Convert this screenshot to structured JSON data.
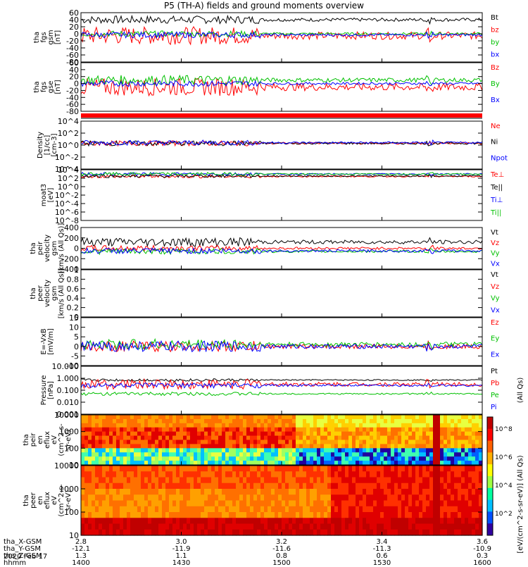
{
  "title": "P5 (TH-A) fields and ground moments overview",
  "chart_data": {
    "type": "line",
    "panels": [
      {
        "id": "fgs_gsm",
        "ylabel": [
          "tha",
          "fgs",
          "gsm",
          "[nT]"
        ],
        "yticks": [
          60,
          40,
          20,
          0,
          -20,
          -40,
          -60,
          -80
        ],
        "ylim": [
          -80,
          60
        ],
        "series": [
          {
            "name": "Bt",
            "color": "#000000",
            "base": 40,
            "amp": 8
          },
          {
            "name": "bz",
            "color": "#ff0000",
            "base": -5,
            "amp": 18
          },
          {
            "name": "by",
            "color": "#00c000",
            "base": 0,
            "amp": 6
          },
          {
            "name": "bx",
            "color": "#0000ff",
            "base": -3,
            "amp": 6
          }
        ],
        "legend": [
          "Bt",
          "bz",
          "by",
          "bx"
        ]
      },
      {
        "id": "fgs_gse",
        "ylabel": [
          "tha",
          "fgs",
          "gse",
          "[nT]"
        ],
        "yticks": [
          60,
          40,
          20,
          0,
          -20,
          -40,
          -60,
          -80
        ],
        "ylim": [
          -80,
          60
        ],
        "series": [
          {
            "name": "Bz",
            "color": "#ff0000",
            "base": -10,
            "amp": 18
          },
          {
            "name": "By",
            "color": "#00c000",
            "base": 10,
            "amp": 10
          },
          {
            "name": "Bx",
            "color": "#0000ff",
            "base": 0,
            "amp": 6
          }
        ],
        "legend": [
          "Bz",
          "By",
          "Bx"
        ]
      },
      {
        "id": "density",
        "ylabel": [
          "Density",
          "[1/cc]",
          "[cm-3]"
        ],
        "yticks": [
          "10^4",
          "10^2",
          "10^0",
          "10^-2",
          "10^-4"
        ],
        "log": true,
        "ylim": [
          -4,
          4
        ],
        "series": [
          {
            "name": "Ne",
            "color": "#ff0000",
            "base": 0.3,
            "amp": 0.3
          },
          {
            "name": "Ni",
            "color": "#000000",
            "base": 0.3,
            "amp": 0.3
          },
          {
            "name": "Npot",
            "color": "#0000ff",
            "base": 0.4,
            "amp": 0.3
          }
        ],
        "legend": [
          "Ne",
          "Ni",
          "Npot"
        ]
      },
      {
        "id": "temperature",
        "ylabel": [
          "moat3",
          "[eV]"
        ],
        "yticks": [
          "10^4",
          "10^2",
          "10^0",
          "10^-2",
          "10^-4",
          "10^-6",
          "10^-8"
        ],
        "log": true,
        "ylim": [
          -9,
          4
        ],
        "series": [
          {
            "name": "Te⊥",
            "color": "#ff0000",
            "base": 2.3,
            "amp": 0.3
          },
          {
            "name": "Te||",
            "color": "#000000",
            "base": 2.4,
            "amp": 0.3
          },
          {
            "name": "Ti⊥",
            "color": "#0000ff",
            "base": 2.9,
            "amp": 0.3
          },
          {
            "name": "Ti||",
            "color": "#00c000",
            "base": 2.9,
            "amp": 0.3
          }
        ],
        "legend": [
          "Te⊥",
          "Te||",
          "Ti⊥",
          "Ti||"
        ]
      },
      {
        "id": "peir_velocity",
        "ylabel": [
          "tha",
          "peir",
          "velocity",
          "gsm",
          "[km/s (All Qs)]"
        ],
        "yticks": [
          400,
          200,
          0,
          -200,
          -400
        ],
        "ylim": [
          -400,
          400
        ],
        "series": [
          {
            "name": "Vt",
            "color": "#000000",
            "base": 120,
            "amp": 60
          },
          {
            "name": "Vz",
            "color": "#ff0000",
            "base": 0,
            "amp": 40
          },
          {
            "name": "Vy",
            "color": "#00c000",
            "base": -60,
            "amp": 40
          },
          {
            "name": "Vx",
            "color": "#0000ff",
            "base": -50,
            "amp": 40
          }
        ],
        "legend": [
          "Vt",
          "Vz",
          "Vy",
          "Vx"
        ]
      },
      {
        "id": "peer_velocity",
        "ylabel": [
          "tha",
          "peer",
          "velocity",
          "gsm",
          "[km/s (All Qs)]"
        ],
        "yticks": [
          1.0,
          0.8,
          0.6,
          0.4,
          0.2,
          0.0
        ],
        "ylim": [
          0,
          1
        ],
        "series": [],
        "legend": [
          "Vt",
          "Vz",
          "Vy",
          "Vx"
        ]
      },
      {
        "id": "efield",
        "ylabel": [
          "E=-VxB",
          "[mV/m]"
        ],
        "yticks": [
          15,
          10,
          5,
          0,
          -5,
          -10
        ],
        "ylim": [
          -10,
          15
        ],
        "series": [
          {
            "name": "Ez",
            "color": "#ff0000",
            "base": 0,
            "amp": 2
          },
          {
            "name": "Ey",
            "color": "#00c000",
            "base": 1,
            "amp": 2
          },
          {
            "name": "Ex",
            "color": "#0000ff",
            "base": 0,
            "amp": 2
          }
        ],
        "legend": [
          "Ez",
          "Ey",
          "Ex"
        ]
      },
      {
        "id": "pressure",
        "ylabel": [
          "Pressure",
          "[nPa]"
        ],
        "yticks": [
          "10.000",
          "1.000",
          "0.100",
          "0.010",
          "0.001"
        ],
        "log": true,
        "ylim": [
          -3,
          1
        ],
        "series": [
          {
            "name": "Pt",
            "color": "#000000",
            "base": -0.15,
            "amp": 0.08
          },
          {
            "name": "Pb",
            "color": "#ff0000",
            "base": -0.5,
            "amp": 0.3
          },
          {
            "name": "Pe",
            "color": "#00c000",
            "base": -1.3,
            "amp": 0.1
          },
          {
            "name": "Pi",
            "color": "#0000ff",
            "base": -0.6,
            "amp": 0.15
          }
        ],
        "legend": [
          "Pt",
          "Pb",
          "Pe",
          "Pi"
        ],
        "right_label": "(All Qs)"
      },
      {
        "id": "peir_eflux",
        "ylabel": [
          "tha",
          "peir",
          "en",
          "eflux",
          "eV",
          "(cm^2-s-",
          "sr-eV)"
        ],
        "yticks": [
          10000,
          1000,
          100,
          10
        ],
        "log": true,
        "spectrogram": true
      },
      {
        "id": "peer_eflux",
        "ylabel": [
          "tha",
          "peer",
          "en",
          "eflux",
          "eV",
          "(cm^2-s-",
          "sr-eV)"
        ],
        "yticks": [
          10000,
          1000,
          100,
          10
        ],
        "log": true,
        "spectrogram": true
      }
    ],
    "colorbar": {
      "label": "[eV/(cm^2-s-sr-eV)] (All Qs)",
      "ticks": [
        "10^8",
        "10^6",
        "10^4",
        "10^2"
      ]
    },
    "x_time_ticks": [
      "1400",
      "1430",
      "1500",
      "1530",
      "1600"
    ],
    "ephemeris": [
      {
        "label": "tha_X-GSM",
        "values": [
          "2.8",
          "3.0",
          "3.2",
          "3.4",
          "3.6"
        ]
      },
      {
        "label": "tha_Y-GSM",
        "values": [
          "-12.1",
          "-11.9",
          "-11.6",
          "-11.3",
          "-10.9"
        ]
      },
      {
        "label": "tha_Z-GSM",
        "values": [
          "1.3",
          "1.1",
          "0.8",
          "0.6",
          "0.3"
        ]
      },
      {
        "label": "hhmm",
        "values": [
          "1400",
          "1430",
          "1500",
          "1530",
          "1600"
        ]
      }
    ],
    "date": "2020 Feb 17"
  }
}
